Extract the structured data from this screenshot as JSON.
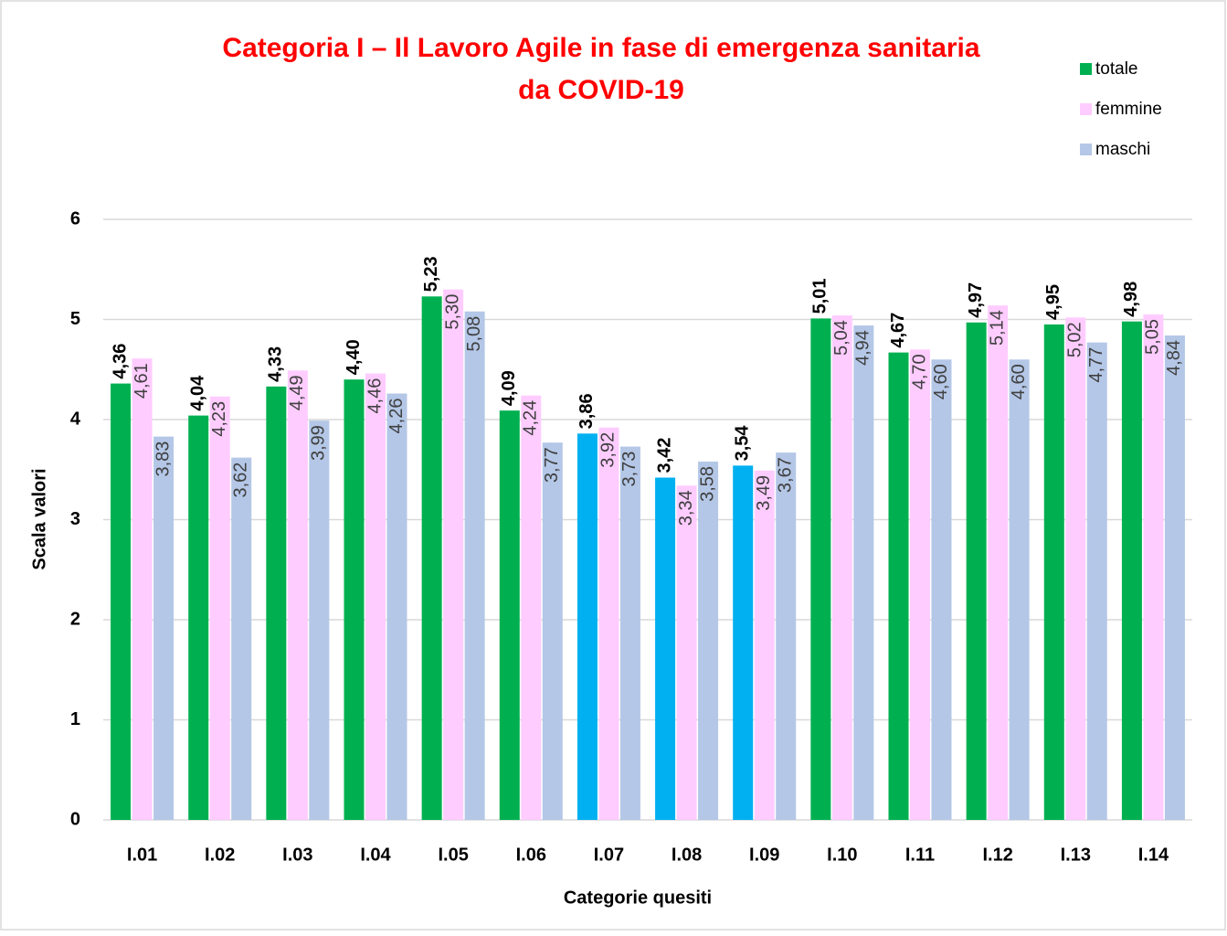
{
  "chart_data": {
    "type": "bar",
    "title": [
      "Categoria I – Il Lavoro Agile in fase di emergenza sanitaria",
      "da COVID-19"
    ],
    "x_label": "Categorie quesiti",
    "y_label": "Scala valori",
    "categories": [
      "I.01",
      "I.02",
      "I.03",
      "I.04",
      "I.05",
      "I.06",
      "I.07",
      "I.08",
      "I.09",
      "I.10",
      "I.11",
      "I.12",
      "I.13",
      "I.14"
    ],
    "series": [
      {
        "name": "totale",
        "color": "#00b050",
        "colors": [
          "#00b050",
          "#00b050",
          "#00b050",
          "#00b050",
          "#00b050",
          "#00b050",
          "#00b0f0",
          "#00b0f0",
          "#00b0f0",
          "#00b050",
          "#00b050",
          "#00b050",
          "#00b050",
          "#00b050"
        ],
        "values": [
          4.36,
          4.04,
          4.33,
          4.4,
          5.23,
          4.09,
          3.86,
          3.42,
          3.54,
          5.01,
          4.67,
          4.97,
          4.95,
          4.98
        ],
        "value_labels": [
          "4,36",
          "4,04",
          "4,33",
          "4,40",
          "5,23",
          "4,09",
          "3,86",
          "3,42",
          "3,54",
          "5,01",
          "4,67",
          "4,97",
          "4,95",
          "4,98"
        ]
      },
      {
        "name": "femmine",
        "color": "#ffccff",
        "values": [
          4.61,
          4.23,
          4.49,
          4.46,
          5.3,
          4.24,
          3.92,
          3.34,
          3.49,
          5.04,
          4.7,
          5.14,
          5.02,
          5.05
        ],
        "value_labels": [
          "4,61",
          "4,23",
          "4,49",
          "4,46",
          "5,30",
          "4,24",
          "3,92",
          "3,34",
          "3,49",
          "5,04",
          "4,70",
          "5,14",
          "5,02",
          "5,05"
        ]
      },
      {
        "name": "maschi",
        "color": "#b4c7e7",
        "values": [
          3.83,
          3.62,
          3.99,
          4.26,
          5.08,
          3.77,
          3.73,
          3.58,
          3.67,
          4.94,
          4.6,
          4.6,
          4.77,
          4.84
        ],
        "value_labels": [
          "3,83",
          "3,62",
          "3,99",
          "4,26",
          "5,08",
          "3,77",
          "3,73",
          "3,58",
          "3,67",
          "4,94",
          "4,60",
          "4,60",
          "4,77",
          "4,84"
        ]
      }
    ],
    "ylim": [
      0,
      6
    ],
    "yticks": [
      0,
      1,
      2,
      3,
      4,
      5,
      6
    ],
    "grid": true,
    "legend": "top-right"
  }
}
